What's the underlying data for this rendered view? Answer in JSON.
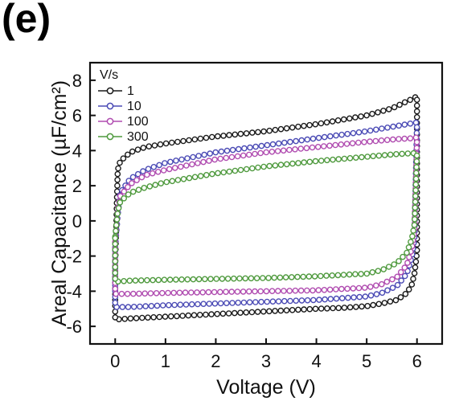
{
  "panel_label": "(e)",
  "chart_data": {
    "type": "line",
    "title": "",
    "xlabel": "Voltage (V)",
    "ylabel": "Areal Capacitance (µF/cm²)",
    "xlim": [
      -0.5,
      6.5
    ],
    "ylim": [
      -7,
      9
    ],
    "xticks": [
      0,
      1,
      2,
      3,
      4,
      5,
      6
    ],
    "yticks": [
      -6,
      -4,
      -2,
      0,
      2,
      4,
      6,
      8
    ],
    "grid": false,
    "legend_title": "V/s",
    "legend_position": "top-left",
    "series": [
      {
        "name": "1",
        "color": "#1a1a1a",
        "upper": {
          "x": [
            0,
            0.05,
            0.1,
            0.3,
            0.6,
            1,
            2,
            3,
            4,
            5,
            5.5,
            5.8,
            5.95,
            6.0
          ],
          "y": [
            -2.6,
            2.9,
            3.4,
            3.9,
            4.2,
            4.4,
            4.8,
            5.1,
            5.5,
            6.0,
            6.4,
            6.8,
            7.0,
            7.1
          ]
        },
        "lower": {
          "x": [
            6.0,
            6.0,
            5.95,
            5.9,
            5.8,
            5.6,
            5.3,
            5,
            4.5,
            4,
            3,
            2,
            1,
            0.3,
            0.05,
            0
          ],
          "y": [
            7.1,
            -1.8,
            -3.0,
            -3.6,
            -4.1,
            -4.5,
            -4.7,
            -4.85,
            -4.95,
            -5.0,
            -5.15,
            -5.3,
            -5.45,
            -5.55,
            -5.6,
            -5.6
          ]
        }
      },
      {
        "name": "10",
        "color": "#4b4bb5",
        "upper": {
          "x": [
            0,
            0.05,
            0.1,
            0.3,
            0.6,
            1,
            2,
            3,
            4,
            5,
            5.6,
            5.9,
            6.0
          ],
          "y": [
            -1.5,
            0.3,
            1.6,
            2.4,
            2.9,
            3.3,
            3.9,
            4.3,
            4.7,
            5.1,
            5.4,
            5.55,
            5.6
          ]
        },
        "lower": {
          "x": [
            6.0,
            5.95,
            5.9,
            5.8,
            5.6,
            5.3,
            5,
            4,
            3,
            2,
            1,
            0.3,
            0.05,
            0
          ],
          "y": [
            1.6,
            -1.0,
            -2.0,
            -3.0,
            -3.7,
            -4.1,
            -4.3,
            -4.5,
            -4.6,
            -4.7,
            -4.8,
            -4.9,
            -4.9,
            -4.9
          ]
        }
      },
      {
        "name": "100",
        "color": "#b04cb0",
        "upper": {
          "x": [
            0,
            0.05,
            0.1,
            0.3,
            0.6,
            1,
            2,
            3,
            4,
            5,
            5.6,
            5.9,
            6.0
          ],
          "y": [
            -1.2,
            0.6,
            1.4,
            2.1,
            2.6,
            2.9,
            3.5,
            3.9,
            4.2,
            4.5,
            4.65,
            4.7,
            4.75
          ]
        },
        "lower": {
          "x": [
            6.0,
            5.95,
            5.9,
            5.8,
            5.6,
            5.3,
            5,
            4,
            3,
            2,
            1,
            0.3,
            0.05,
            0
          ],
          "y": [
            1.8,
            -0.6,
            -1.5,
            -2.5,
            -3.2,
            -3.6,
            -3.8,
            -3.95,
            -4.0,
            -4.05,
            -4.1,
            -4.15,
            -4.15,
            -4.15
          ]
        }
      },
      {
        "name": "300",
        "color": "#4f9a3e",
        "upper": {
          "x": [
            0,
            0.05,
            0.1,
            0.3,
            0.6,
            1,
            2,
            3,
            4,
            5,
            5.6,
            5.9,
            6.0
          ],
          "y": [
            -0.9,
            0.5,
            1.1,
            1.6,
            1.9,
            2.2,
            2.7,
            3.1,
            3.4,
            3.65,
            3.8,
            3.85,
            3.85
          ]
        },
        "lower": {
          "x": [
            6.0,
            5.95,
            5.9,
            5.8,
            5.6,
            5.3,
            5,
            4,
            3,
            2,
            1,
            0.3,
            0.05,
            0
          ],
          "y": [
            2.0,
            -0.2,
            -1.0,
            -1.8,
            -2.4,
            -2.8,
            -3.0,
            -3.15,
            -3.25,
            -3.3,
            -3.35,
            -3.4,
            -3.45,
            -3.45
          ]
        }
      }
    ]
  }
}
